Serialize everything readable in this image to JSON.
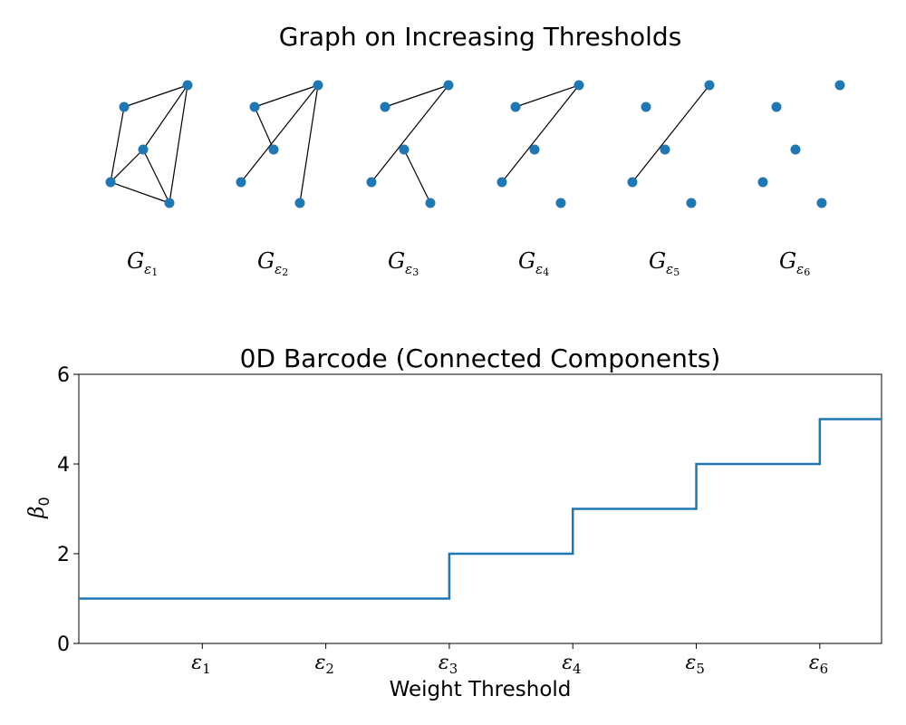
{
  "top_title": "Graph on Increasing Thresholds",
  "graphs": [
    {
      "label": "G",
      "sub": "ε",
      "subsub": "1",
      "edges": [
        [
          0,
          1
        ],
        [
          0,
          3
        ],
        [
          1,
          2
        ],
        [
          1,
          4
        ],
        [
          2,
          3
        ],
        [
          2,
          4
        ],
        [
          3,
          4
        ]
      ]
    },
    {
      "label": "G",
      "sub": "ε",
      "subsub": "2",
      "edges": [
        [
          0,
          1
        ],
        [
          0,
          2
        ],
        [
          1,
          3
        ],
        [
          1,
          4
        ]
      ]
    },
    {
      "label": "G",
      "sub": "ε",
      "subsub": "3",
      "edges": [
        [
          0,
          1
        ],
        [
          1,
          3
        ],
        [
          2,
          4
        ]
      ]
    },
    {
      "label": "G",
      "sub": "ε",
      "subsub": "4",
      "edges": [
        [
          0,
          1
        ],
        [
          1,
          3
        ]
      ]
    },
    {
      "label": "G",
      "sub": "ε",
      "subsub": "5",
      "edges": [
        [
          1,
          3
        ]
      ]
    },
    {
      "label": "G",
      "sub": "ε",
      "subsub": "6",
      "edges": []
    }
  ],
  "chart_data": {
    "type": "line",
    "step": "post",
    "title": "0D Barcode (Connected Components)",
    "xlabel": "Weight Threshold",
    "ylabel": "β",
    "ylabel_sub": "0",
    "x": [
      0,
      1,
      2,
      3,
      4,
      5,
      6,
      6.5
    ],
    "y": [
      1,
      1,
      1,
      2,
      3,
      4,
      5,
      5
    ],
    "xlim": [
      0,
      6.5
    ],
    "ylim": [
      0,
      6
    ],
    "xticks": [
      {
        "value": 1,
        "label": "ε",
        "sub": "1"
      },
      {
        "value": 2,
        "label": "ε",
        "sub": "2"
      },
      {
        "value": 3,
        "label": "ε",
        "sub": "3"
      },
      {
        "value": 4,
        "label": "ε",
        "sub": "4"
      },
      {
        "value": 5,
        "label": "ε",
        "sub": "5"
      },
      {
        "value": 6,
        "label": "ε",
        "sub": "6"
      }
    ],
    "yticks": [
      "0",
      "2",
      "4",
      "6"
    ],
    "line_color": "#1f77b4",
    "grid": false
  }
}
